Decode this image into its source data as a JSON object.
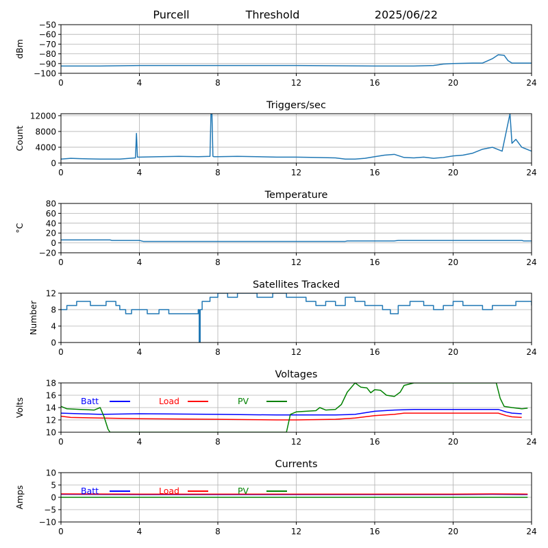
{
  "header": {
    "site": "Purcell",
    "label": "Threshold",
    "date": "2025/06/22"
  },
  "colors": {
    "series": "#1f77b4",
    "batt": "#0000ff",
    "load": "#ff0000",
    "pv": "#008000",
    "grid": "#b0b0b0"
  },
  "chart_data": [
    {
      "type": "line",
      "title": "",
      "xlabel": "",
      "ylabel": "dBm",
      "xlim": [
        0,
        24
      ],
      "ylim": [
        -100,
        -50
      ],
      "grid": true,
      "xticks": [
        0,
        4,
        8,
        12,
        16,
        20,
        24
      ],
      "yticks": [
        -100,
        -90,
        -80,
        -70,
        -60,
        -50
      ],
      "yticklabels": [
        "−100",
        "−90",
        "−80",
        "−70",
        "−60",
        "−50"
      ],
      "series": [
        {
          "x": [
            0,
            2,
            4,
            8,
            12,
            16,
            18,
            19,
            19.5,
            20,
            21,
            21.5,
            22,
            22.3,
            22.6,
            22.8,
            23,
            24
          ],
          "y": [
            -92.5,
            -92.5,
            -92,
            -92,
            -92,
            -92.5,
            -92.5,
            -92,
            -90.5,
            -90,
            -89.5,
            -89.5,
            -85,
            -81,
            -81.5,
            -87,
            -89.5,
            -89.5
          ]
        }
      ]
    },
    {
      "type": "line",
      "title": "Triggers/sec",
      "xlabel": "",
      "ylabel": "Count",
      "xlim": [
        0,
        24
      ],
      "ylim": [
        0,
        12500
      ],
      "grid": true,
      "xticks": [
        0,
        4,
        8,
        12,
        16,
        20,
        24
      ],
      "yticks": [
        0,
        4000,
        8000,
        12000
      ],
      "yticklabels": [
        "0",
        "4000",
        "8000",
        "12000"
      ],
      "series": [
        {
          "x": [
            0,
            0.5,
            1,
            2,
            3,
            3.5,
            3.8,
            3.85,
            3.9,
            4,
            5,
            6,
            7,
            7.6,
            7.65,
            7.7,
            7.75,
            7.8,
            8,
            9,
            10,
            11,
            12,
            13,
            14,
            14.5,
            15,
            15.5,
            16,
            16.5,
            17,
            17.5,
            18,
            18.5,
            19,
            19.5,
            20,
            20.5,
            21,
            21.5,
            22,
            22.5,
            22.9,
            23,
            23.2,
            23.5,
            24
          ],
          "y": [
            1000,
            1200,
            1100,
            1000,
            1000,
            1200,
            1300,
            7500,
            1500,
            1500,
            1600,
            1700,
            1600,
            1700,
            12500,
            12500,
            1700,
            1600,
            1600,
            1700,
            1600,
            1500,
            1500,
            1400,
            1300,
            1000,
            1000,
            1200,
            1600,
            2000,
            2200,
            1400,
            1300,
            1500,
            1200,
            1400,
            1800,
            2000,
            2500,
            3500,
            4000,
            3000,
            12500,
            5000,
            6000,
            4000,
            3000
          ]
        }
      ]
    },
    {
      "type": "line",
      "title": "Temperature",
      "xlabel": "",
      "ylabel": "°C",
      "xlim": [
        0,
        24
      ],
      "ylim": [
        -20,
        80
      ],
      "grid": true,
      "xticks": [
        0,
        4,
        8,
        12,
        16,
        20,
        24
      ],
      "yticks": [
        -20,
        0,
        20,
        40,
        60,
        80
      ],
      "yticklabels": [
        "−20",
        "0",
        "20",
        "40",
        "60",
        "80"
      ],
      "series": [
        {
          "x": [
            0,
            2.5,
            2.6,
            4,
            4.2,
            8,
            12,
            14.5,
            14.6,
            17,
            17.2,
            20,
            23.5,
            23.6,
            24
          ],
          "y": [
            6,
            6,
            5,
            5,
            3,
            3,
            3,
            3,
            4,
            4,
            5,
            5,
            5,
            4,
            4
          ]
        }
      ]
    },
    {
      "type": "line",
      "title": "Satellites Tracked",
      "xlabel": "",
      "ylabel": "Number",
      "xlim": [
        0,
        24
      ],
      "ylim": [
        0,
        12
      ],
      "grid": true,
      "step": true,
      "xticks": [
        0,
        4,
        8,
        12,
        16,
        20,
        24
      ],
      "yticks": [
        0,
        4,
        8,
        12
      ],
      "yticklabels": [
        "0",
        "4",
        "8",
        "12"
      ],
      "series": [
        {
          "x": [
            0,
            0.3,
            0.8,
            1.5,
            2.3,
            2.8,
            3,
            3.3,
            3.6,
            4,
            4.4,
            5,
            5.5,
            6,
            7,
            7.05,
            7.1,
            7.2,
            7.6,
            8,
            8.5,
            9,
            10,
            10.8,
            11.5,
            12,
            12.5,
            13,
            13.5,
            14,
            14.5,
            15,
            15.5,
            16,
            16.4,
            16.8,
            17.2,
            17.8,
            18.5,
            19,
            19.5,
            20,
            20.5,
            21,
            21.5,
            22,
            22.5,
            23,
            23.2,
            23.6,
            24
          ],
          "y": [
            8,
            9,
            10,
            9,
            10,
            9,
            8,
            7,
            8,
            8,
            7,
            8,
            7,
            7,
            8,
            0,
            8,
            10,
            11,
            12,
            11,
            12,
            11,
            12,
            11,
            11,
            10,
            9,
            10,
            9,
            11,
            10,
            9,
            9,
            8,
            7,
            9,
            10,
            9,
            8,
            9,
            10,
            9,
            9,
            8,
            9,
            9,
            9,
            10,
            10,
            9
          ]
        }
      ]
    },
    {
      "type": "line",
      "title": "Voltages",
      "xlabel": "",
      "ylabel": "Volts",
      "xlim": [
        0,
        24
      ],
      "ylim": [
        10,
        18
      ],
      "grid": true,
      "xticks": [
        0,
        4,
        8,
        12,
        16,
        20,
        24
      ],
      "yticks": [
        10,
        12,
        14,
        16,
        18
      ],
      "yticklabels": [
        "10",
        "12",
        "14",
        "16",
        "18"
      ],
      "legend": "top-left",
      "series": [
        {
          "name": "Batt",
          "color": "#0000ff",
          "x": [
            0,
            2,
            4,
            8,
            11,
            12,
            14,
            15,
            16,
            17,
            18,
            20,
            22.3,
            22.7,
            23,
            23.5
          ],
          "y": [
            13.1,
            12.9,
            13,
            12.9,
            12.8,
            12.8,
            12.8,
            12.9,
            13.4,
            13.6,
            13.7,
            13.7,
            13.7,
            13.3,
            13.1,
            13
          ]
        },
        {
          "name": "Load",
          "color": "#ff0000",
          "x": [
            0,
            0.5,
            2,
            4,
            8,
            11,
            12,
            14,
            15,
            16,
            17,
            17.5,
            20,
            22.3,
            22.7,
            23,
            23.5
          ],
          "y": [
            12.6,
            12.4,
            12.3,
            12.2,
            12.1,
            12,
            12,
            12.1,
            12.3,
            12.7,
            12.9,
            13.1,
            13.1,
            13.1,
            12.7,
            12.5,
            12.4
          ]
        },
        {
          "name": "PV",
          "color": "#008000",
          "x": [
            0,
            0.3,
            1,
            1.7,
            2,
            2.2,
            2.4,
            2.5,
            11.5,
            11.7,
            12,
            12.5,
            13,
            13.2,
            13.5,
            14,
            14.3,
            14.6,
            15,
            15.3,
            15.6,
            15.8,
            16,
            16.3,
            16.6,
            17,
            17.3,
            17.5,
            18,
            22.2,
            22.4,
            22.6,
            23,
            23.5,
            23.8
          ],
          "y": [
            14.2,
            13.8,
            13.7,
            13.6,
            14,
            12.5,
            10.5,
            10,
            10,
            12.9,
            13.3,
            13.4,
            13.5,
            14,
            13.6,
            13.7,
            14.5,
            16.5,
            18,
            17.3,
            17.2,
            16.4,
            16.9,
            16.8,
            16,
            15.8,
            16.5,
            17.6,
            18,
            18,
            15.5,
            14.2,
            14,
            13.8,
            13.9
          ]
        }
      ]
    },
    {
      "type": "line",
      "title": "Currents",
      "xlabel": "",
      "ylabel": "Amps",
      "xlim": [
        0,
        24
      ],
      "ylim": [
        -10,
        10
      ],
      "grid": true,
      "xticks": [
        0,
        4,
        8,
        12,
        16,
        20,
        24
      ],
      "yticks": [
        -10,
        -5,
        0,
        5,
        10
      ],
      "yticklabels": [
        "−10",
        "−5",
        "0",
        "5",
        "10"
      ],
      "legend": "top-left",
      "series": [
        {
          "name": "Batt",
          "color": "#0000ff",
          "x": [
            0,
            4,
            8,
            12,
            16,
            20,
            22,
            23.8
          ],
          "y": [
            1.2,
            1.1,
            1.1,
            1.1,
            1.1,
            1.1,
            1.2,
            1.1
          ]
        },
        {
          "name": "Load",
          "color": "#ff0000",
          "x": [
            0,
            4,
            8,
            12,
            16,
            20,
            22,
            23.8
          ],
          "y": [
            1.4,
            1.3,
            1.3,
            1.3,
            1.3,
            1.3,
            1.4,
            1.3
          ]
        },
        {
          "name": "PV",
          "color": "#008000",
          "x": [
            0,
            4,
            8,
            12,
            16,
            20,
            23.8
          ],
          "y": [
            0,
            0,
            0,
            0,
            0,
            0,
            0
          ]
        }
      ]
    }
  ]
}
